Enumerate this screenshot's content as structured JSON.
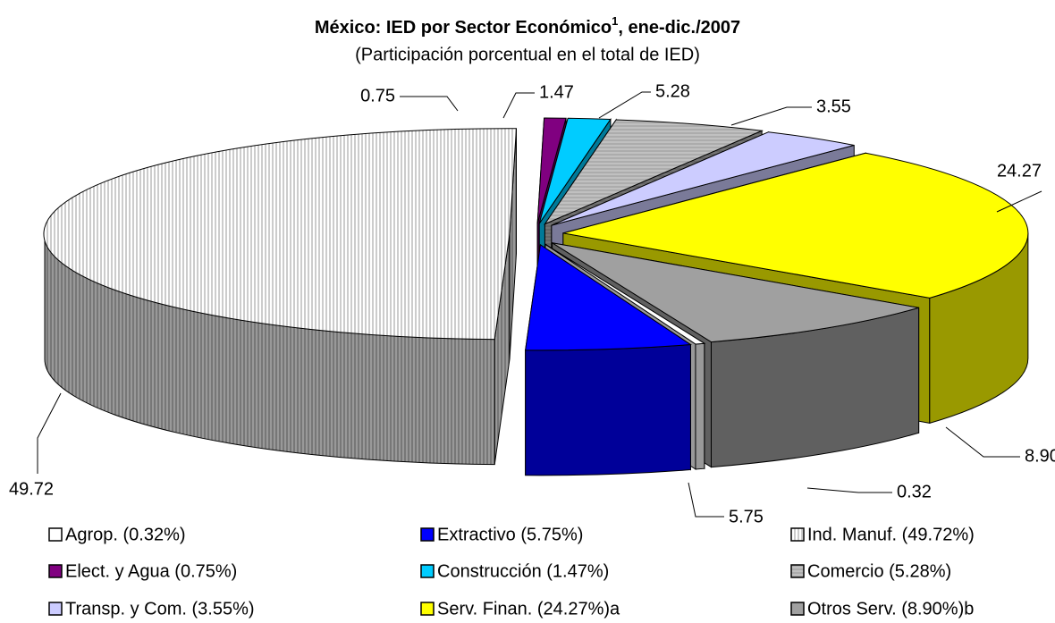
{
  "chart_data": {
    "type": "pie3d",
    "title": "México: IED por Sector Económico",
    "title_superscript": "1",
    "title_suffix": ", ene-dic./2007",
    "subtitle": "(Participación porcentual en el total de IED)",
    "categories": [
      "Agrop. (0.32%)",
      "Extractivo (5.75%)",
      "Ind. Manuf. (49.72%)",
      "Elect. y Agua (0.75%)",
      "Construcción (1.47%)",
      "Comercio (5.28%)",
      "Transp. y Com. (3.55%)",
      "Serv. Finan. (24.27%)a",
      "Otros Serv. (8.90%)b"
    ],
    "values": [
      0.32,
      5.75,
      49.72,
      0.75,
      1.47,
      5.28,
      3.55,
      24.27,
      8.9
    ],
    "value_labels": [
      "0.32",
      "5.75",
      "49.72",
      "0.75",
      "1.47",
      "5.28",
      "3.55",
      "24.27",
      "8.90"
    ],
    "colors": [
      "#ffffff",
      "#0000ff",
      "#ffffff",
      "#800080",
      "#00ccff",
      "#c0c0c0",
      "#ccccff",
      "#ffff00",
      "#a0a0a0"
    ],
    "patterns": [
      null,
      null,
      "vertical",
      null,
      null,
      "horizontal",
      null,
      null,
      null
    ],
    "legend": "bottom"
  }
}
